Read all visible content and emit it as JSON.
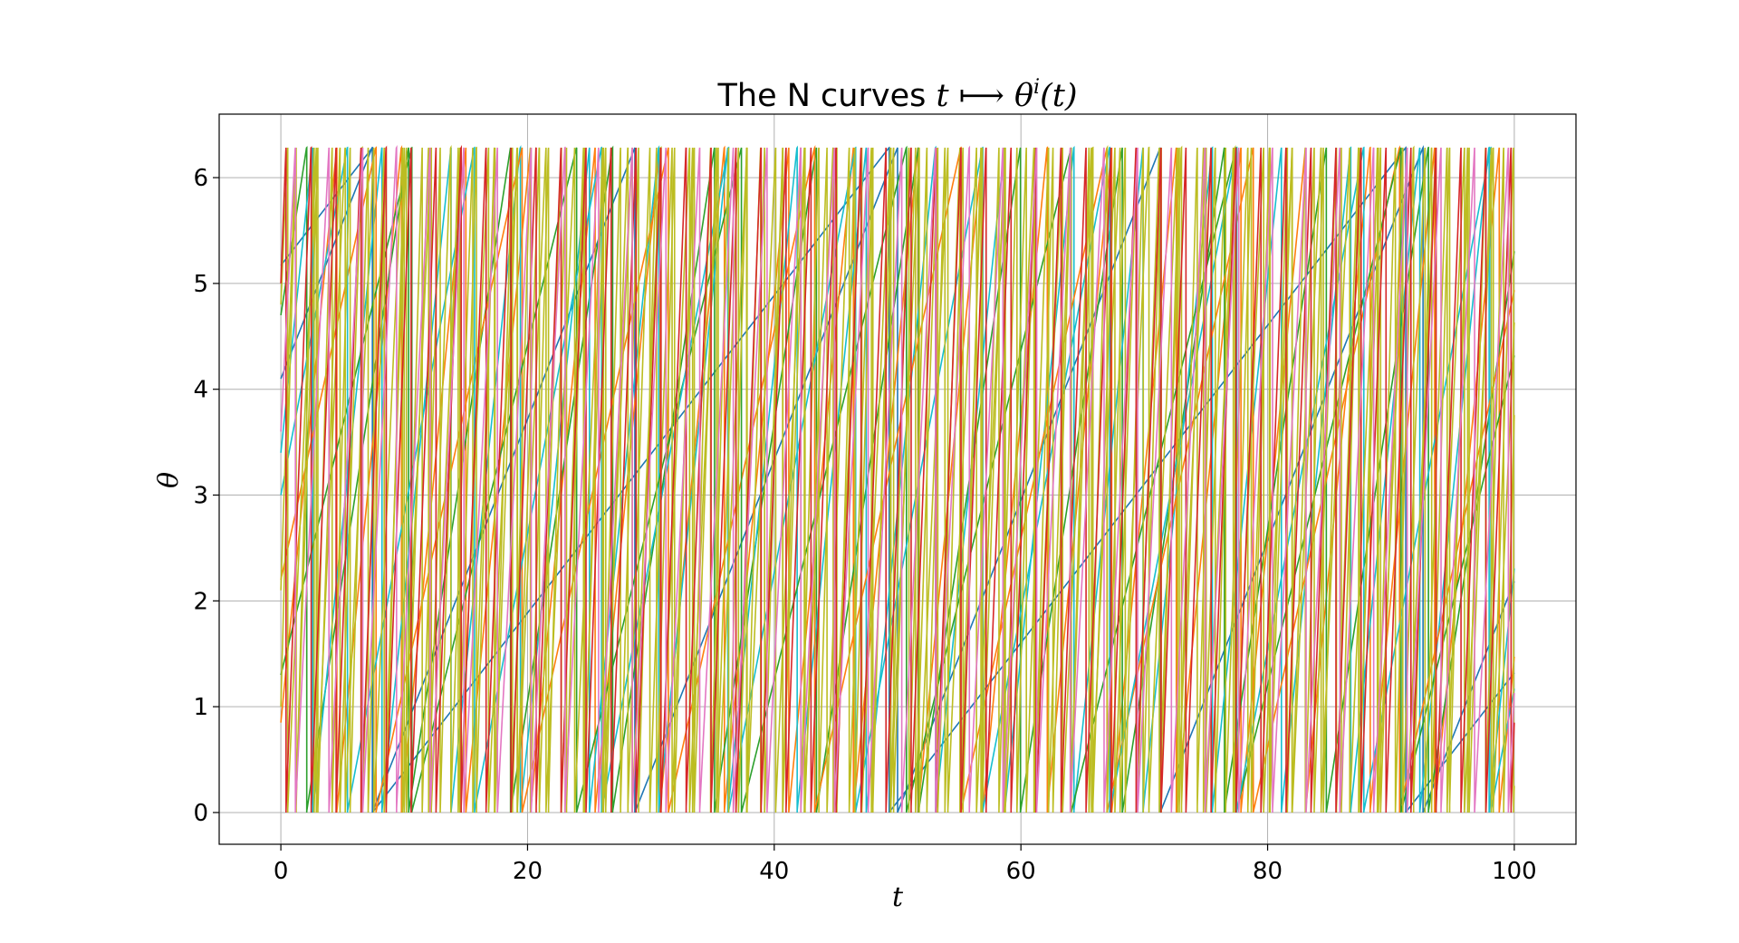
{
  "chart_data": {
    "type": "line",
    "title_main": "The N curves ",
    "title_math": "t ⟼ θ",
    "title_sup": "i",
    "title_tail": "(t)",
    "xlabel": "t",
    "ylabel": "θ",
    "xlim": [
      -5,
      105
    ],
    "ylim": [
      -0.3,
      6.6
    ],
    "xticks": [
      0,
      20,
      40,
      60,
      80,
      100
    ],
    "yticks": [
      0,
      1,
      2,
      3,
      4,
      5,
      6
    ],
    "xtick_labels": [
      "0",
      "20",
      "40",
      "60",
      "80",
      "100"
    ],
    "ytick_labels": [
      "0",
      "1",
      "2",
      "3",
      "4",
      "5",
      "6"
    ],
    "grid": true,
    "wrap_period": 6.283,
    "t_range": [
      0,
      100
    ],
    "series": [
      {
        "color": "#1f77b4",
        "theta0": 5.17,
        "omega": 0.15
      },
      {
        "color": "#1f77b4",
        "theta0": 4.1,
        "omega": 0.295
      },
      {
        "color": "#ff7f0e",
        "theta0": 0.85,
        "omega": 1.2
      },
      {
        "color": "#2ca02c",
        "theta0": 4.7,
        "omega": 0.76
      },
      {
        "color": "#17becf",
        "theta0": 3.4,
        "omega": 1.12
      },
      {
        "color": "#ff7f0e",
        "theta0": 2.2,
        "omega": 0.53
      },
      {
        "color": "#2ca02c",
        "theta0": 1.3,
        "omega": 0.47
      },
      {
        "color": "#17becf",
        "theta0": 3.0,
        "omega": 0.61
      },
      {
        "color": "#bcbd22",
        "theta0": 2.1,
        "omega": 3.5
      },
      {
        "color": "#bcbd22",
        "theta0": 4.8,
        "omega": 2.7
      },
      {
        "color": "#bcbd22",
        "theta0": 1.0,
        "omega": 4.3
      },
      {
        "color": "#d62728",
        "theta0": 5.0,
        "omega": 3.1
      },
      {
        "color": "#e377c2",
        "theta0": 3.6,
        "omega": 2.3
      }
    ]
  }
}
